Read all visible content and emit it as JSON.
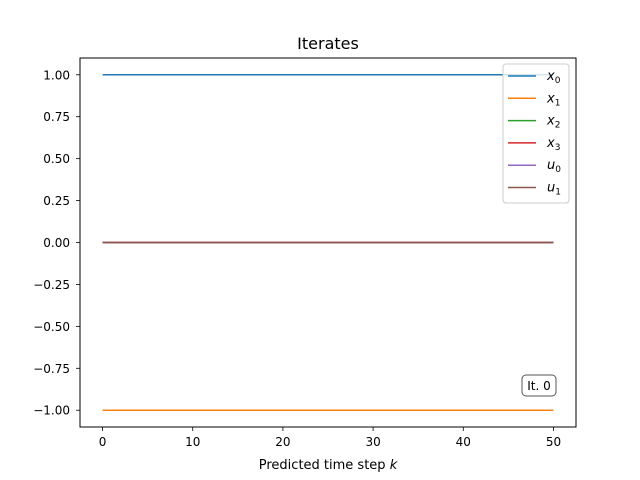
{
  "chart_data": {
    "type": "line",
    "title": "Iterates",
    "xlabel": "Predicted time step",
    "xlabel_var": "k",
    "ylabel": "",
    "xlim": [
      -2.5,
      52.5
    ],
    "ylim": [
      -1.1,
      1.1
    ],
    "xticks": [
      0,
      10,
      20,
      30,
      40,
      50
    ],
    "xtick_labels": [
      "0",
      "10",
      "20",
      "30",
      "40",
      "50"
    ],
    "yticks": [
      1.0,
      0.75,
      0.5,
      0.25,
      0.0,
      -0.25,
      -0.5,
      -0.75,
      -1.0
    ],
    "ytick_labels": [
      "1.00",
      "0.75",
      "0.50",
      "0.25",
      "0.00",
      "−0.25",
      "−0.50",
      "−0.75",
      "−1.00"
    ],
    "grid": false,
    "legend_position": "top-right",
    "series": [
      {
        "name": "x",
        "sub": "0",
        "color": "#1f77b4",
        "x": [
          0,
          50
        ],
        "values": [
          1,
          1
        ]
      },
      {
        "name": "x",
        "sub": "1",
        "color": "#ff7f0e",
        "x": [
          0,
          50
        ],
        "values": [
          -1,
          -1
        ]
      },
      {
        "name": "x",
        "sub": "2",
        "color": "#2ca02c",
        "x": [
          0,
          50
        ],
        "values": [
          0,
          0
        ]
      },
      {
        "name": "x",
        "sub": "3",
        "color": "#d62728",
        "x": [
          0,
          50
        ],
        "values": [
          0,
          0
        ]
      },
      {
        "name": "u",
        "sub": "0",
        "color": "#9467bd",
        "x": [
          0,
          50
        ],
        "values": [
          0,
          0
        ]
      },
      {
        "name": "u",
        "sub": "1",
        "color": "#8c564b",
        "x": [
          0,
          50
        ],
        "values": [
          0,
          0
        ]
      }
    ],
    "annotations": [
      {
        "text": "It. 0",
        "position": "bottom-right"
      }
    ]
  }
}
